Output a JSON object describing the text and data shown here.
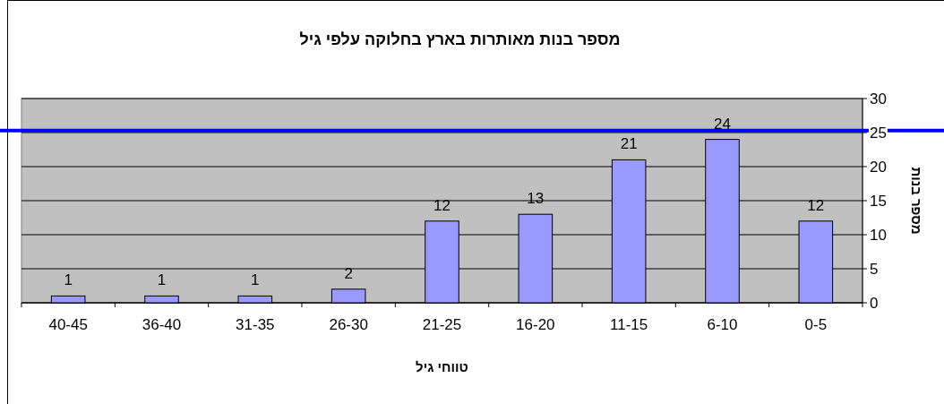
{
  "chart_data": {
    "type": "bar",
    "title": "מספר בנות מאותרות בארץ בחלוקה עלפי גיל",
    "xlabel": "טווחי גיל",
    "ylabel": "מספר בנות",
    "categories": [
      "40-45",
      "36-40",
      "31-35",
      "26-30",
      "21-25",
      "16-20",
      "11-15",
      "6-10",
      "0-5"
    ],
    "values": [
      1,
      1,
      1,
      2,
      12,
      13,
      21,
      24,
      12
    ],
    "color": "#9999ff",
    "ylim": [
      0,
      30
    ],
    "yticks": [
      0,
      5,
      10,
      15,
      20,
      25,
      30
    ],
    "grid": "y",
    "data_labels": true,
    "ref_lines": [
      {
        "axis": "y",
        "value": 25.3,
        "color": "#0000ff"
      }
    ]
  }
}
